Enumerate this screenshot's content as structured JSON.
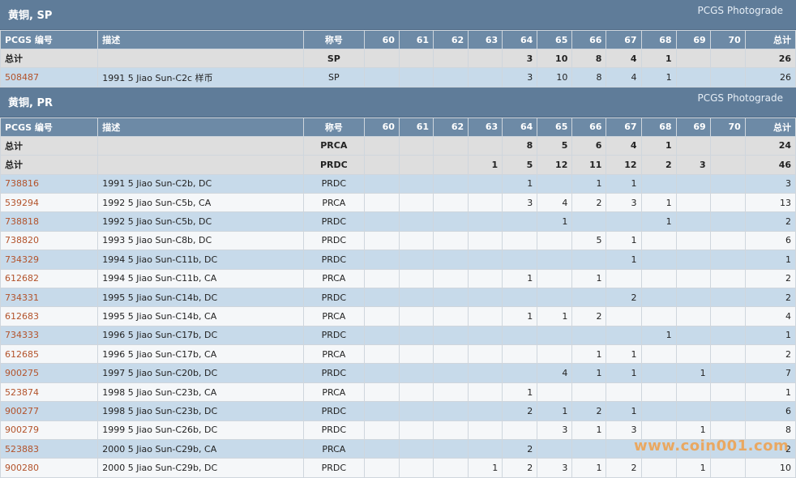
{
  "columns": [
    "PCGS 编号",
    "描述",
    "称号",
    "60",
    "61",
    "62",
    "63",
    "64",
    "65",
    "66",
    "67",
    "68",
    "69",
    "70",
    "总计"
  ],
  "sections": [
    {
      "title": "黄铜, SP",
      "link": "PCGS Photograde",
      "rows": [
        {
          "type": "total",
          "c": [
            "总计",
            "",
            "SP",
            "",
            "",
            "",
            "",
            "3",
            "10",
            "8",
            "4",
            "1",
            "",
            "",
            "26"
          ]
        },
        {
          "type": "data",
          "c": [
            "508487",
            "1991 5 Jiao Sun-C2c 样币",
            "SP",
            "",
            "",
            "",
            "",
            "3",
            "10",
            "8",
            "4",
            "1",
            "",
            "",
            "26"
          ]
        }
      ]
    },
    {
      "title": "黄铜, PR",
      "link": "PCGS Photograde",
      "rows": [
        {
          "type": "total",
          "c": [
            "总计",
            "",
            "PRCA",
            "",
            "",
            "",
            "",
            "8",
            "5",
            "6",
            "4",
            "1",
            "",
            "",
            "24"
          ]
        },
        {
          "type": "total",
          "c": [
            "总计",
            "",
            "PRDC",
            "",
            "",
            "",
            "1",
            "5",
            "12",
            "11",
            "12",
            "2",
            "3",
            "",
            "46"
          ]
        },
        {
          "type": "data",
          "c": [
            "738816",
            "1991 5 Jiao Sun-C2b, DC",
            "PRDC",
            "",
            "",
            "",
            "",
            "1",
            "",
            "1",
            "1",
            "",
            "",
            "",
            "3"
          ]
        },
        {
          "type": "data",
          "c": [
            "539294",
            "1992 5 Jiao Sun-C5b, CA",
            "PRCA",
            "",
            "",
            "",
            "",
            "3",
            "4",
            "2",
            "3",
            "1",
            "",
            "",
            "13"
          ]
        },
        {
          "type": "data",
          "c": [
            "738818",
            "1992 5 Jiao Sun-C5b, DC",
            "PRDC",
            "",
            "",
            "",
            "",
            "",
            "1",
            "",
            "",
            "1",
            "",
            "",
            "2"
          ]
        },
        {
          "type": "data",
          "c": [
            "738820",
            "1993 5 Jiao Sun-C8b, DC",
            "PRDC",
            "",
            "",
            "",
            "",
            "",
            "",
            "5",
            "1",
            "",
            "",
            "",
            "6"
          ]
        },
        {
          "type": "data",
          "c": [
            "734329",
            "1994 5 Jiao Sun-C11b, DC",
            "PRDC",
            "",
            "",
            "",
            "",
            "",
            "",
            "",
            "1",
            "",
            "",
            "",
            "1"
          ]
        },
        {
          "type": "data",
          "c": [
            "612682",
            "1994 5 Jiao Sun-C11b, CA",
            "PRCA",
            "",
            "",
            "",
            "",
            "1",
            "",
            "1",
            "",
            "",
            "",
            "",
            "2"
          ]
        },
        {
          "type": "data",
          "c": [
            "734331",
            "1995 5 Jiao Sun-C14b, DC",
            "PRDC",
            "",
            "",
            "",
            "",
            "",
            "",
            "",
            "2",
            "",
            "",
            "",
            "2"
          ]
        },
        {
          "type": "data",
          "c": [
            "612683",
            "1995 5 Jiao Sun-C14b, CA",
            "PRCA",
            "",
            "",
            "",
            "",
            "1",
            "1",
            "2",
            "",
            "",
            "",
            "",
            "4"
          ]
        },
        {
          "type": "data",
          "c": [
            "734333",
            "1996 5 Jiao Sun-C17b, DC",
            "PRDC",
            "",
            "",
            "",
            "",
            "",
            "",
            "",
            "",
            "1",
            "",
            "",
            "1"
          ]
        },
        {
          "type": "data",
          "c": [
            "612685",
            "1996 5 Jiao Sun-C17b, CA",
            "PRCA",
            "",
            "",
            "",
            "",
            "",
            "",
            "1",
            "1",
            "",
            "",
            "",
            "2"
          ]
        },
        {
          "type": "data",
          "c": [
            "900275",
            "1997 5 Jiao Sun-C20b, DC",
            "PRDC",
            "",
            "",
            "",
            "",
            "",
            "4",
            "1",
            "1",
            "",
            "1",
            "",
            "7"
          ]
        },
        {
          "type": "data",
          "c": [
            "523874",
            "1998 5 Jiao Sun-C23b, CA",
            "PRCA",
            "",
            "",
            "",
            "",
            "1",
            "",
            "",
            "",
            "",
            "",
            "",
            "1"
          ]
        },
        {
          "type": "data",
          "c": [
            "900277",
            "1998 5 Jiao Sun-C23b, DC",
            "PRDC",
            "",
            "",
            "",
            "",
            "2",
            "1",
            "2",
            "1",
            "",
            "",
            "",
            "6"
          ]
        },
        {
          "type": "data",
          "c": [
            "900279",
            "1999 5 Jiao Sun-C26b, DC",
            "PRDC",
            "",
            "",
            "",
            "",
            "",
            "3",
            "1",
            "3",
            "",
            "1",
            "",
            "8"
          ]
        },
        {
          "type": "data",
          "c": [
            "523883",
            "2000 5 Jiao Sun-C29b, CA",
            "PRCA",
            "",
            "",
            "",
            "",
            "2",
            "",
            "",
            "",
            "",
            "",
            "",
            "2"
          ]
        },
        {
          "type": "data",
          "c": [
            "900280",
            "2000 5 Jiao Sun-C29b, DC",
            "PRDC",
            "",
            "",
            "",
            "1",
            "2",
            "3",
            "1",
            "2",
            "",
            "1",
            "",
            "10"
          ]
        }
      ]
    }
  ],
  "watermark": "www.coin001.com"
}
